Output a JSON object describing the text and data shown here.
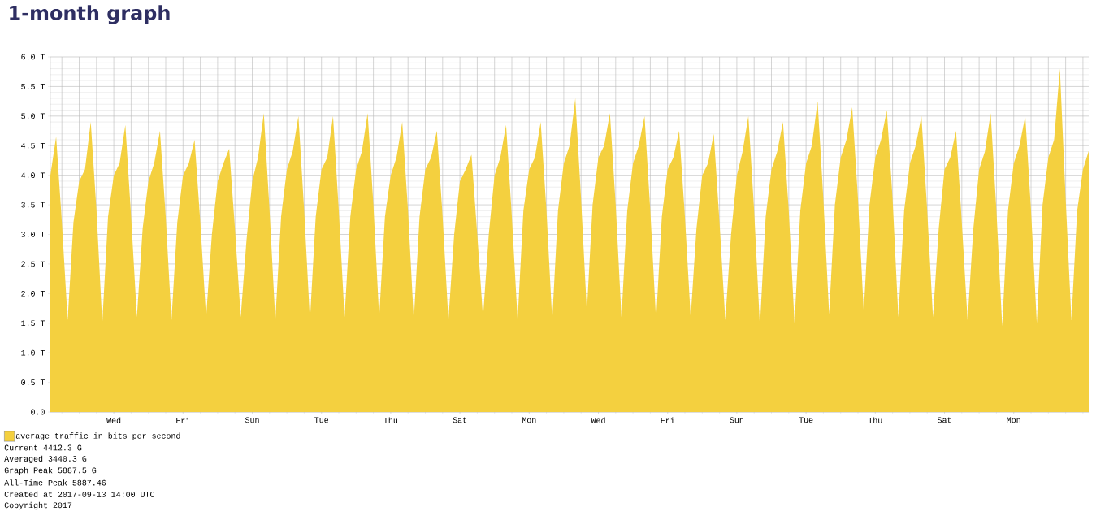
{
  "chart_data": {
    "type": "area",
    "title": "1-month graph",
    "categories": [
      null,
      null,
      null,
      null,
      null,
      null,
      null,
      null,
      null,
      null,
      null,
      "Wed",
      null,
      null,
      null,
      null,
      null,
      null,
      null,
      null,
      null,
      null,
      null,
      "Fri",
      null,
      null,
      null,
      null,
      null,
      null,
      null,
      null,
      null,
      null,
      null,
      "Sun",
      null,
      null,
      null,
      null,
      null,
      null,
      null,
      null,
      null,
      null,
      null,
      "Tue",
      null,
      null,
      null,
      null,
      null,
      null,
      null,
      null,
      null,
      null,
      null,
      "Thu",
      null,
      null,
      null,
      null,
      null,
      null,
      null,
      null,
      null,
      null,
      null,
      "Sat",
      null,
      null,
      null,
      null,
      null,
      null,
      null,
      null,
      null,
      null,
      null,
      "Mon",
      null,
      null,
      null,
      null,
      null,
      null,
      null,
      null,
      null,
      null,
      null,
      "Wed",
      null,
      null,
      null,
      null,
      null,
      null,
      null,
      null,
      null,
      null,
      null,
      "Fri",
      null,
      null,
      null,
      null,
      null,
      null,
      null,
      null,
      null,
      null,
      null,
      "Sun",
      null,
      null,
      null,
      null,
      null,
      null,
      null,
      null,
      null,
      null,
      null,
      "Tue",
      null,
      null,
      null,
      null,
      null,
      null,
      null,
      null,
      null,
      null,
      null,
      "Thu",
      null,
      null,
      null,
      null,
      null,
      null,
      null,
      null,
      null,
      null,
      null,
      "Sat",
      null,
      null,
      null,
      null,
      null,
      null,
      null,
      null,
      null,
      null,
      null,
      "Mon",
      null,
      null,
      null,
      null,
      null,
      null,
      null,
      null,
      null,
      null,
      null,
      null,
      null
    ],
    "ylim": [
      0,
      6
    ],
    "yticks": [
      {
        "value": 0,
        "label": "0.0"
      },
      {
        "value": 0.5,
        "label": "0.5 T"
      },
      {
        "value": 1,
        "label": "1.0 T"
      },
      {
        "value": 1.5,
        "label": "1.5 T"
      },
      {
        "value": 2,
        "label": "2.0 T"
      },
      {
        "value": 2.5,
        "label": "2.5 T"
      },
      {
        "value": 3,
        "label": "3.0 T"
      },
      {
        "value": 3.5,
        "label": "3.5 T"
      },
      {
        "value": 4,
        "label": "4.0 T"
      },
      {
        "value": 4.5,
        "label": "4.5 T"
      },
      {
        "value": 5,
        "label": "5.0 T"
      },
      {
        "value": 5.5,
        "label": "5.5 T"
      },
      {
        "value": 6,
        "label": "6.0 T"
      }
    ],
    "grid": true,
    "legend": "bottom left",
    "series": [
      {
        "name": "average traffic in bits per second",
        "color": "#f4d03f",
        "values": [
          4.0,
          4.65,
          3.2,
          1.55,
          3.2,
          3.9,
          4.1,
          4.9,
          3.4,
          1.5,
          3.3,
          4.0,
          4.2,
          4.85,
          3.3,
          1.6,
          3.1,
          3.9,
          4.2,
          4.75,
          3.3,
          1.55,
          3.2,
          4.0,
          4.2,
          4.6,
          3.2,
          1.6,
          3.0,
          3.9,
          4.2,
          4.45,
          3.1,
          1.6,
          2.9,
          3.9,
          4.3,
          5.05,
          3.4,
          1.55,
          3.3,
          4.1,
          4.4,
          5.0,
          3.4,
          1.55,
          3.3,
          4.1,
          4.3,
          5.0,
          3.4,
          1.6,
          3.3,
          4.1,
          4.4,
          5.05,
          3.5,
          1.6,
          3.3,
          4.0,
          4.3,
          4.9,
          3.4,
          1.55,
          3.3,
          4.1,
          4.3,
          4.75,
          3.3,
          1.55,
          3.0,
          3.9,
          4.1,
          4.35,
          3.0,
          1.6,
          3.0,
          4.0,
          4.3,
          4.85,
          3.3,
          1.55,
          3.4,
          4.1,
          4.3,
          4.9,
          3.4,
          1.55,
          3.4,
          4.2,
          4.5,
          5.3,
          3.6,
          1.7,
          3.5,
          4.3,
          4.5,
          5.05,
          3.5,
          1.6,
          3.4,
          4.2,
          4.5,
          5.0,
          3.4,
          1.55,
          3.3,
          4.1,
          4.3,
          4.75,
          3.3,
          1.6,
          3.1,
          4.0,
          4.2,
          4.7,
          3.2,
          1.55,
          3.0,
          4.0,
          4.4,
          5.0,
          3.4,
          1.45,
          3.3,
          4.1,
          4.4,
          4.9,
          3.4,
          1.5,
          3.4,
          4.2,
          4.5,
          5.25,
          3.6,
          1.65,
          3.5,
          4.3,
          4.6,
          5.15,
          3.6,
          1.7,
          3.5,
          4.3,
          4.6,
          5.1,
          3.6,
          1.6,
          3.4,
          4.2,
          4.5,
          5.0,
          3.4,
          1.6,
          3.1,
          4.1,
          4.3,
          4.75,
          3.2,
          1.55,
          3.1,
          4.1,
          4.4,
          5.05,
          3.4,
          1.45,
          3.4,
          4.2,
          4.5,
          5.0,
          3.4,
          1.5,
          3.5,
          4.3,
          4.6,
          5.8,
          3.6,
          1.55,
          3.4,
          4.1,
          4.41
        ]
      }
    ],
    "annotations": [
      "Current 4412.3 G",
      "Averaged 3440.3 G",
      "Graph Peak 5887.5 G",
      "All-Time Peak 5887.46",
      "Created at 2017-09-13 14:00 UTC",
      "Copyright 2017"
    ]
  }
}
